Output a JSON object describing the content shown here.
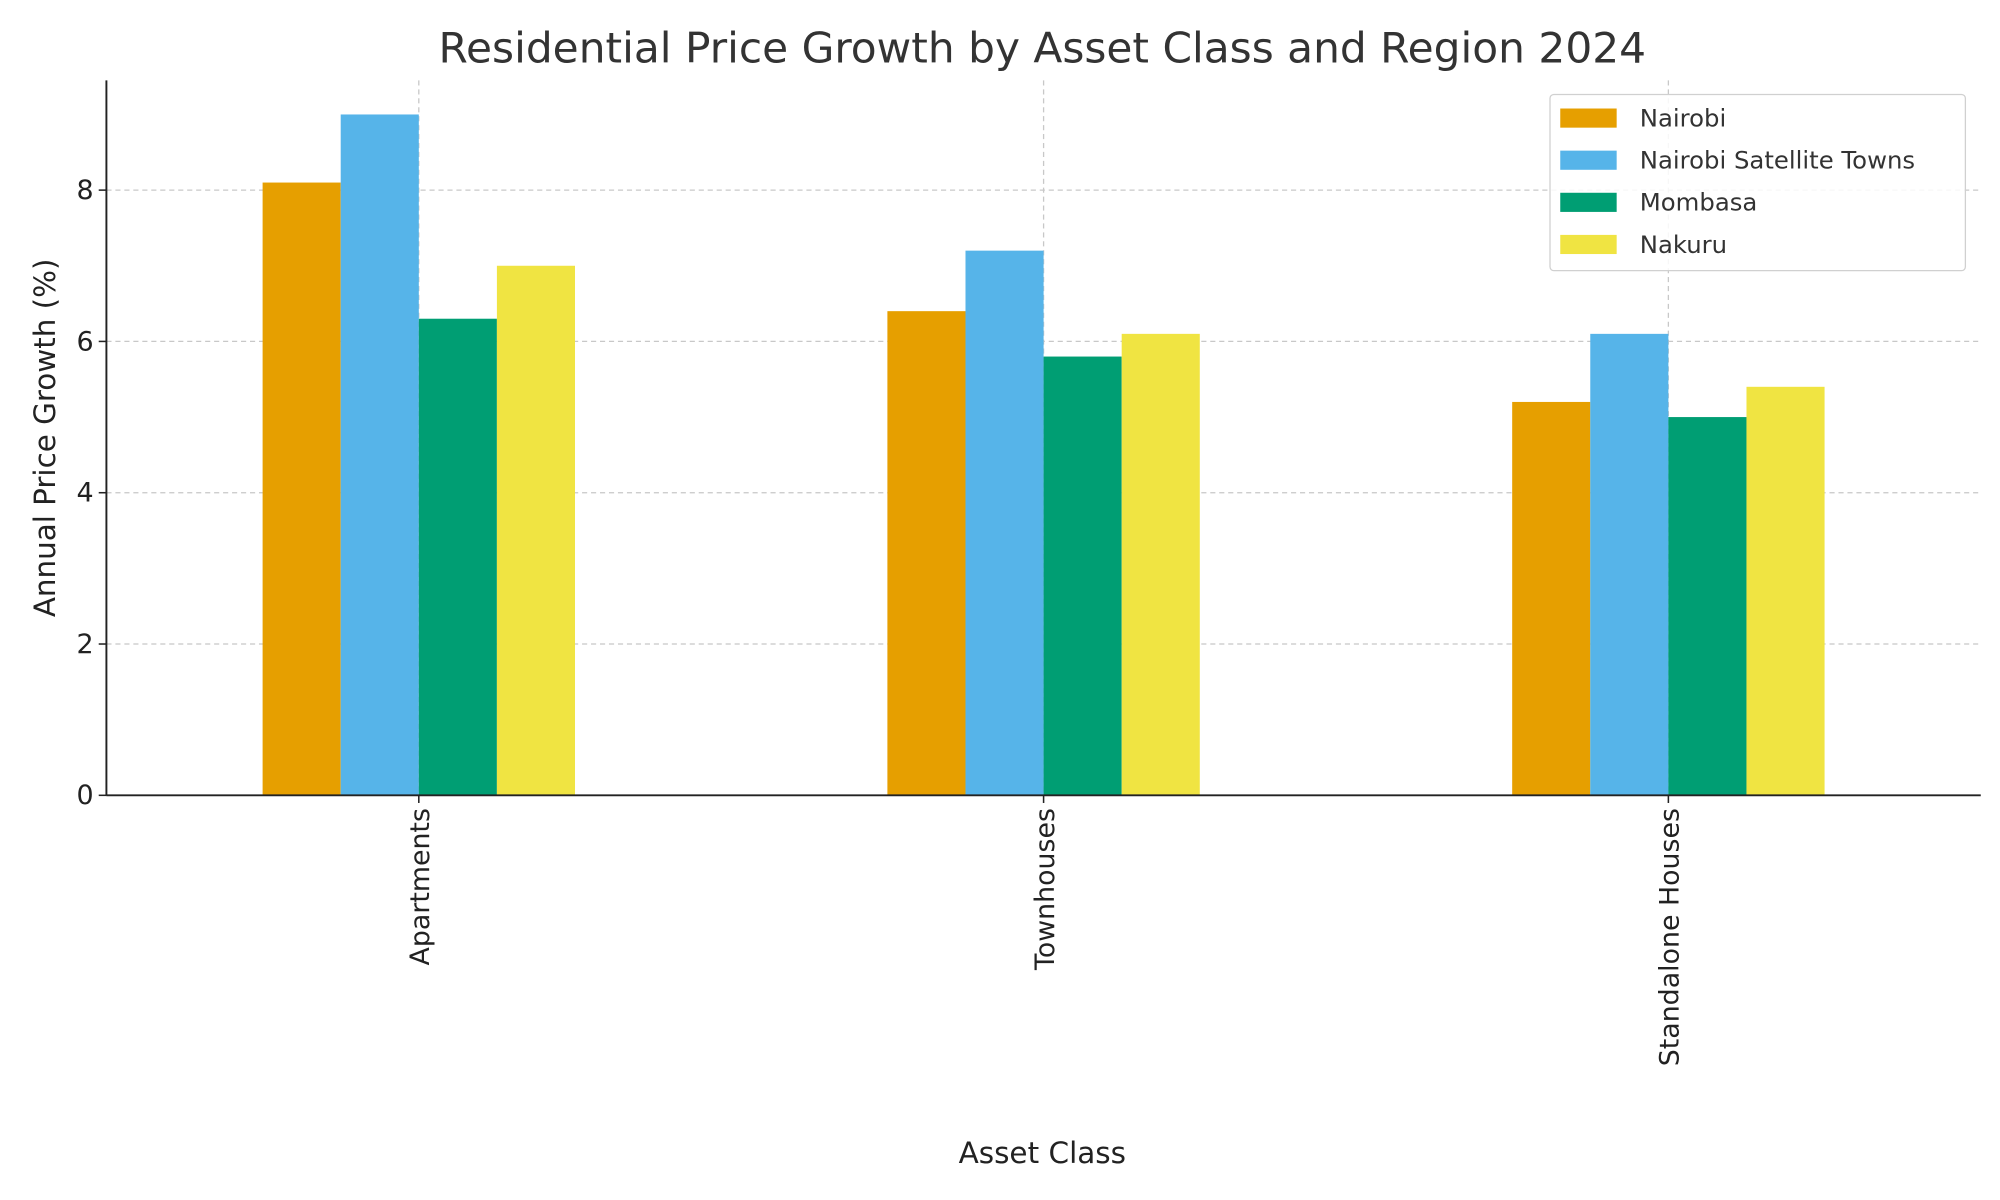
{
  "chart_data": {
    "type": "bar",
    "title": "Residential Price Growth by Asset Class and Region 2024",
    "xlabel": "Asset Class",
    "ylabel": "Annual Price Growth (%)",
    "categories": [
      "Apartments",
      "Townhouses",
      "Standalone Houses"
    ],
    "series": [
      {
        "name": "Nairobi",
        "color": "#E69F00",
        "values": [
          8.1,
          6.4,
          5.2
        ]
      },
      {
        "name": "Nairobi Satellite Towns",
        "color": "#56B4E9",
        "values": [
          9.0,
          7.2,
          6.1
        ]
      },
      {
        "name": "Mombasa",
        "color": "#009E73",
        "values": [
          6.3,
          5.8,
          5.0
        ]
      },
      {
        "name": "Nakuru",
        "color": "#F0E442",
        "values": [
          7.0,
          6.1,
          5.4
        ]
      }
    ],
    "yticks": [
      0,
      2,
      4,
      6,
      8
    ],
    "ylim": [
      0,
      9.45
    ],
    "grid": true,
    "legend_position": "top-right"
  }
}
